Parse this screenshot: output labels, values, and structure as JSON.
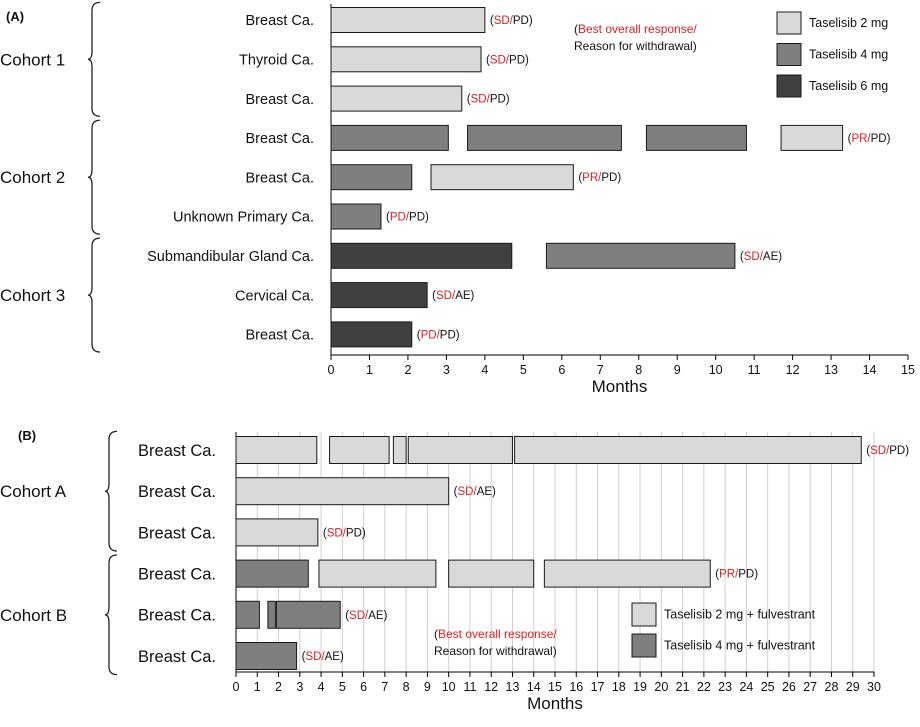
{
  "panels": [
    {
      "label": "(A)",
      "xlabel": "Months",
      "xlim": [
        0,
        15
      ],
      "xticks": [
        0,
        1,
        2,
        3,
        4,
        5,
        6,
        7,
        8,
        9,
        10,
        11,
        12,
        13,
        14,
        15
      ],
      "annotation": {
        "line1": "Best overall response/",
        "line2": "Reason for withdrawal)",
        "open_paren": "("
      },
      "legend": [
        {
          "key": "t2",
          "label": "Taselisib 2 mg",
          "color": "#d9d9d9"
        },
        {
          "key": "t4",
          "label": "Taselisib 4 mg",
          "color": "#7f7f7f"
        },
        {
          "key": "t6",
          "label": "Taselisib 6 mg",
          "color": "#404040"
        }
      ],
      "cohorts": [
        {
          "label": "Cohort  1",
          "rows": [
            0,
            2
          ]
        },
        {
          "label": "Cohort  2",
          "rows": [
            3,
            5
          ]
        },
        {
          "label": "Cohort  3",
          "rows": [
            6,
            8
          ]
        }
      ],
      "rows": [
        {
          "label": "Breast Ca.",
          "response": "SD",
          "reason": "PD",
          "segments": [
            {
              "start": 0,
              "end": 4.0,
              "dose": "t2"
            }
          ]
        },
        {
          "label": "Thyroid Ca.",
          "response": "SD",
          "reason": "PD",
          "segments": [
            {
              "start": 0,
              "end": 3.9,
              "dose": "t2"
            }
          ]
        },
        {
          "label": "Breast Ca.",
          "response": "SD",
          "reason": "PD",
          "segments": [
            {
              "start": 0,
              "end": 3.4,
              "dose": "t2"
            }
          ]
        },
        {
          "label": "Breast Ca.",
          "response": "PR",
          "reason": "PD",
          "segments": [
            {
              "start": 0,
              "end": 3.05,
              "dose": "t4"
            },
            {
              "start": 3.55,
              "end": 7.55,
              "dose": "t4"
            },
            {
              "start": 8.2,
              "end": 10.8,
              "dose": "t4"
            },
            {
              "start": 11.7,
              "end": 13.3,
              "dose": "t2"
            }
          ]
        },
        {
          "label": "Breast Ca.",
          "response": "PR",
          "reason": "PD",
          "segments": [
            {
              "start": 0,
              "end": 2.1,
              "dose": "t4"
            },
            {
              "start": 2.6,
              "end": 6.3,
              "dose": "t2"
            }
          ]
        },
        {
          "label": "Unknown Primary Ca.",
          "response": "PD",
          "reason": "PD",
          "segments": [
            {
              "start": 0,
              "end": 1.3,
              "dose": "t4"
            }
          ]
        },
        {
          "label": "Submandibular Gland Ca.",
          "response": "SD",
          "reason": "AE",
          "segments": [
            {
              "start": 0,
              "end": 4.7,
              "dose": "t6"
            },
            {
              "start": 5.6,
              "end": 10.5,
              "dose": "t4"
            }
          ]
        },
        {
          "label": "Cervical Ca.",
          "response": "SD",
          "reason": "AE",
          "segments": [
            {
              "start": 0,
              "end": 2.5,
              "dose": "t6"
            }
          ]
        },
        {
          "label": "Breast Ca.",
          "response": "PD",
          "reason": "PD",
          "segments": [
            {
              "start": 0,
              "end": 2.1,
              "dose": "t6"
            }
          ]
        }
      ]
    },
    {
      "label": "(B)",
      "xlabel": "Months",
      "xlim": [
        0,
        30
      ],
      "xticks": [
        0,
        1,
        2,
        3,
        4,
        5,
        6,
        7,
        8,
        9,
        10,
        11,
        12,
        13,
        14,
        15,
        16,
        17,
        18,
        19,
        20,
        21,
        22,
        23,
        24,
        25,
        26,
        27,
        28,
        29,
        30
      ],
      "annotation": {
        "line1": "Best overall response/",
        "line2": "Reason for withdrawal)",
        "open_paren": "("
      },
      "legend": [
        {
          "key": "f2",
          "label": "Taselisib 2 mg + fulvestrant",
          "color": "#d9d9d9"
        },
        {
          "key": "f4",
          "label": "Taselisib 4 mg + fulvestrant",
          "color": "#7f7f7f"
        }
      ],
      "cohorts": [
        {
          "label": "Cohort  A",
          "rows": [
            0,
            2
          ]
        },
        {
          "label": "Cohort  B",
          "rows": [
            3,
            5
          ]
        }
      ],
      "rows": [
        {
          "label": "Breast Ca.",
          "response": "SD",
          "reason": "PD",
          "segments": [
            {
              "start": 0,
              "end": 3.8,
              "dose": "f2"
            },
            {
              "start": 4.4,
              "end": 7.2,
              "dose": "f2"
            },
            {
              "start": 7.4,
              "end": 8.0,
              "dose": "f2"
            },
            {
              "start": 8.1,
              "end": 13.0,
              "dose": "f2"
            },
            {
              "start": 13.1,
              "end": 29.4,
              "dose": "f2"
            }
          ]
        },
        {
          "label": "Breast Ca.",
          "response": "SD",
          "reason": "AE",
          "segments": [
            {
              "start": 0,
              "end": 10.0,
              "dose": "f2"
            }
          ]
        },
        {
          "label": "Breast Ca.",
          "response": "SD",
          "reason": "PD",
          "segments": [
            {
              "start": 0,
              "end": 3.85,
              "dose": "f2"
            }
          ]
        },
        {
          "label": "Breast Ca.",
          "response": "PR",
          "reason": "PD",
          "segments": [
            {
              "start": 0,
              "end": 3.4,
              "dose": "f4"
            },
            {
              "start": 3.9,
              "end": 9.4,
              "dose": "f2"
            },
            {
              "start": 10.0,
              "end": 14.0,
              "dose": "f2"
            },
            {
              "start": 14.5,
              "end": 22.3,
              "dose": "f2"
            }
          ]
        },
        {
          "label": "Breast Ca.",
          "response": "SD",
          "reason": "AE",
          "segments": [
            {
              "start": 0,
              "end": 1.1,
              "dose": "f4"
            },
            {
              "start": 1.5,
              "end": 1.85,
              "dose": "f4"
            },
            {
              "start": 1.9,
              "end": 4.9,
              "dose": "f4"
            }
          ]
        },
        {
          "label": "Breast Ca.",
          "response": "SD",
          "reason": "AE",
          "segments": [
            {
              "start": 0,
              "end": 2.85,
              "dose": "f4"
            }
          ]
        }
      ]
    }
  ],
  "chart_data": [
    {
      "type": "bar",
      "orientation": "horizontal-swimmer",
      "xlabel": "Months",
      "xlim": [
        0,
        15
      ],
      "categories": [
        "Breast Ca.",
        "Thyroid Ca.",
        "Breast Ca.",
        "Breast Ca.",
        "Breast Ca.",
        "Unknown Primary Ca.",
        "Submandibular Gland Ca.",
        "Cervical Ca.",
        "Breast Ca."
      ],
      "series": [
        {
          "name": "Taselisib 2 mg",
          "color": "#d9d9d9"
        },
        {
          "name": "Taselisib 4 mg",
          "color": "#7f7f7f"
        },
        {
          "name": "Taselisib 6 mg",
          "color": "#404040"
        }
      ],
      "durations_months": [
        4.0,
        3.9,
        3.4,
        13.3,
        6.3,
        1.3,
        10.5,
        2.5,
        2.1
      ],
      "response_reason": [
        "SD/PD",
        "SD/PD",
        "SD/PD",
        "PR/PD",
        "PR/PD",
        "PD/PD",
        "SD/AE",
        "SD/AE",
        "PD/PD"
      ]
    },
    {
      "type": "bar",
      "orientation": "horizontal-swimmer",
      "xlabel": "Months",
      "xlim": [
        0,
        30
      ],
      "categories": [
        "Breast Ca.",
        "Breast Ca.",
        "Breast Ca.",
        "Breast Ca.",
        "Breast Ca.",
        "Breast Ca."
      ],
      "series": [
        {
          "name": "Taselisib 2 mg + fulvestrant",
          "color": "#d9d9d9"
        },
        {
          "name": "Taselisib 4 mg + fulvestrant",
          "color": "#7f7f7f"
        }
      ],
      "durations_months": [
        29.4,
        10.0,
        3.85,
        22.3,
        4.9,
        2.85
      ],
      "response_reason": [
        "SD/PD",
        "SD/AE",
        "SD/PD",
        "PR/PD",
        "SD/AE",
        "SD/AE"
      ]
    }
  ],
  "colors": {
    "response": "#e02020",
    "text": "#111111",
    "axis": "#000000",
    "grid": "#cfcfcf"
  }
}
